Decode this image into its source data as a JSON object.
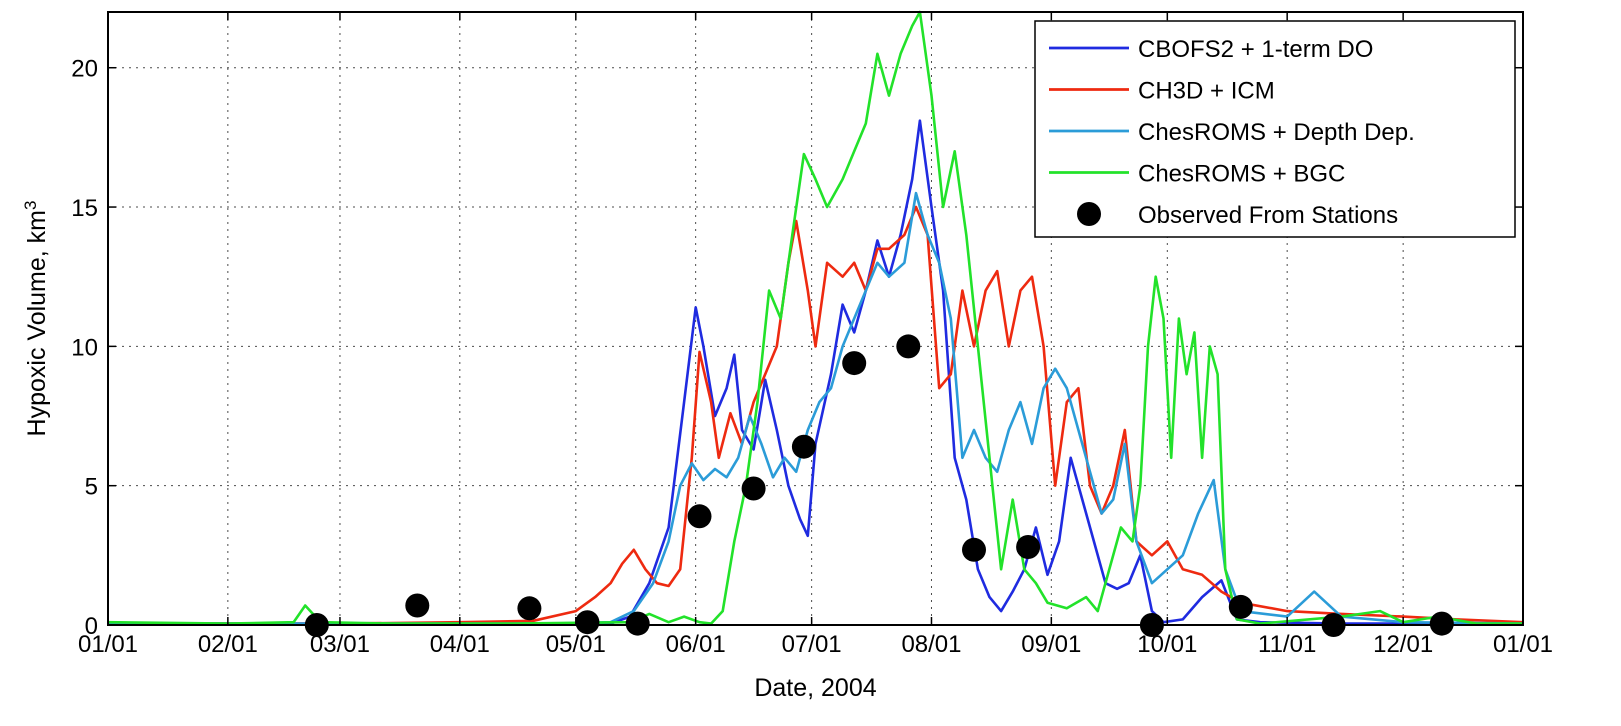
{
  "chart_data": {
    "type": "line",
    "xlabel": "Date, 2004",
    "ylabel": "Hypoxic Volume, km",
    "ylabel_superscript": "3",
    "x_tick_labels": [
      "01/01",
      "02/01",
      "03/01",
      "04/01",
      "05/01",
      "06/01",
      "07/01",
      "08/01",
      "09/01",
      "10/01",
      "11/01",
      "12/01",
      "01/01"
    ],
    "y_tick_labels": [
      "0",
      "5",
      "10",
      "15",
      "20"
    ],
    "y_ticks": [
      0,
      5,
      10,
      15,
      20
    ],
    "xlim": [
      "2004-01-01",
      "2005-01-01"
    ],
    "ylim": [
      0,
      22
    ],
    "grid": true,
    "legend_position": "top-right",
    "series": [
      {
        "name": "CBOFS2 + 1-term DO",
        "color": "#1f2be0",
        "points": [
          [
            "2004-01-01",
            0.05
          ],
          [
            "2004-02-01",
            0.05
          ],
          [
            "2004-03-01",
            0.05
          ],
          [
            "2004-04-01",
            0.05
          ],
          [
            "2004-04-25",
            0.05
          ],
          [
            "2004-05-10",
            0.05
          ],
          [
            "2004-05-15",
            0.3
          ],
          [
            "2004-05-20",
            1.5
          ],
          [
            "2004-05-25",
            3.5
          ],
          [
            "2004-05-29",
            8
          ],
          [
            "2004-06-01",
            11.4
          ],
          [
            "2004-06-03",
            10
          ],
          [
            "2004-06-06",
            7.5
          ],
          [
            "2004-06-09",
            8.5
          ],
          [
            "2004-06-11",
            9.7
          ],
          [
            "2004-06-13",
            7
          ],
          [
            "2004-06-16",
            6.3
          ],
          [
            "2004-06-19",
            8.8
          ],
          [
            "2004-06-22",
            7
          ],
          [
            "2004-06-25",
            5
          ],
          [
            "2004-06-28",
            3.8
          ],
          [
            "2004-06-30",
            3.2
          ],
          [
            "2004-07-02",
            6.5
          ],
          [
            "2004-07-06",
            9
          ],
          [
            "2004-07-09",
            11.5
          ],
          [
            "2004-07-12",
            10.5
          ],
          [
            "2004-07-15",
            12
          ],
          [
            "2004-07-18",
            13.8
          ],
          [
            "2004-07-21",
            12.5
          ],
          [
            "2004-07-24",
            14
          ],
          [
            "2004-07-27",
            16
          ],
          [
            "2004-07-29",
            18.1
          ],
          [
            "2004-08-01",
            15
          ],
          [
            "2004-08-04",
            12
          ],
          [
            "2004-08-07",
            6
          ],
          [
            "2004-08-10",
            4.5
          ],
          [
            "2004-08-13",
            2
          ],
          [
            "2004-08-16",
            1
          ],
          [
            "2004-08-19",
            0.5
          ],
          [
            "2004-08-22",
            1.2
          ],
          [
            "2004-08-25",
            2
          ],
          [
            "2004-08-28",
            3.5
          ],
          [
            "2004-08-31",
            1.8
          ],
          [
            "2004-09-03",
            3
          ],
          [
            "2004-09-06",
            6
          ],
          [
            "2004-09-09",
            4.5
          ],
          [
            "2004-09-12",
            3
          ],
          [
            "2004-09-15",
            1.5
          ],
          [
            "2004-09-18",
            1.3
          ],
          [
            "2004-09-21",
            1.5
          ],
          [
            "2004-09-24",
            2.5
          ],
          [
            "2004-09-27",
            0.5
          ],
          [
            "2004-09-30",
            0.1
          ],
          [
            "2004-10-05",
            0.2
          ],
          [
            "2004-10-10",
            1
          ],
          [
            "2004-10-15",
            1.6
          ],
          [
            "2004-10-19",
            0.2
          ],
          [
            "2004-10-25",
            0.1
          ],
          [
            "2004-11-15",
            0.05
          ],
          [
            "2004-12-15",
            0.05
          ],
          [
            "2005-01-01",
            0.05
          ]
        ]
      },
      {
        "name": "CH3D + ICM",
        "color": "#ee2a10",
        "points": [
          [
            "2004-01-01",
            0.05
          ],
          [
            "2004-02-01",
            0.05
          ],
          [
            "2004-03-01",
            0.05
          ],
          [
            "2004-04-01",
            0.1
          ],
          [
            "2004-04-20",
            0.15
          ],
          [
            "2004-05-01",
            0.5
          ],
          [
            "2004-05-06",
            1
          ],
          [
            "2004-05-10",
            1.5
          ],
          [
            "2004-05-13",
            2.2
          ],
          [
            "2004-05-16",
            2.7
          ],
          [
            "2004-05-19",
            2
          ],
          [
            "2004-05-22",
            1.5
          ],
          [
            "2004-05-25",
            1.4
          ],
          [
            "2004-05-28",
            2
          ],
          [
            "2004-05-31",
            6
          ],
          [
            "2004-06-02",
            9.8
          ],
          [
            "2004-06-05",
            8
          ],
          [
            "2004-06-07",
            6
          ],
          [
            "2004-06-10",
            7.6
          ],
          [
            "2004-06-13",
            6.5
          ],
          [
            "2004-06-16",
            8
          ],
          [
            "2004-06-19",
            9
          ],
          [
            "2004-06-22",
            10
          ],
          [
            "2004-06-25",
            13
          ],
          [
            "2004-06-27",
            14.5
          ],
          [
            "2004-06-30",
            12
          ],
          [
            "2004-07-02",
            10
          ],
          [
            "2004-07-05",
            13
          ],
          [
            "2004-07-09",
            12.5
          ],
          [
            "2004-07-12",
            13
          ],
          [
            "2004-07-15",
            12
          ],
          [
            "2004-07-18",
            13.5
          ],
          [
            "2004-07-21",
            13.5
          ],
          [
            "2004-07-25",
            14
          ],
          [
            "2004-07-28",
            15
          ],
          [
            "2004-07-31",
            14
          ],
          [
            "2004-08-03",
            8.5
          ],
          [
            "2004-08-06",
            9
          ],
          [
            "2004-08-09",
            12
          ],
          [
            "2004-08-12",
            10
          ],
          [
            "2004-08-15",
            12
          ],
          [
            "2004-08-18",
            12.7
          ],
          [
            "2004-08-21",
            10
          ],
          [
            "2004-08-24",
            12
          ],
          [
            "2004-08-27",
            12.5
          ],
          [
            "2004-08-30",
            10
          ],
          [
            "2004-09-02",
            5
          ],
          [
            "2004-09-05",
            8
          ],
          [
            "2004-09-08",
            8.5
          ],
          [
            "2004-09-11",
            5
          ],
          [
            "2004-09-14",
            4
          ],
          [
            "2004-09-17",
            5
          ],
          [
            "2004-09-20",
            7
          ],
          [
            "2004-09-23",
            3
          ],
          [
            "2004-09-27",
            2.5
          ],
          [
            "2004-10-01",
            3
          ],
          [
            "2004-10-05",
            2
          ],
          [
            "2004-10-10",
            1.8
          ],
          [
            "2004-10-15",
            1.2
          ],
          [
            "2004-10-20",
            0.8
          ],
          [
            "2004-11-01",
            0.5
          ],
          [
            "2004-11-15",
            0.4
          ],
          [
            "2004-12-01",
            0.3
          ],
          [
            "2004-12-15",
            0.2
          ],
          [
            "2005-01-01",
            0.1
          ]
        ]
      },
      {
        "name": "ChesROMS + Depth Dep.",
        "color": "#2b9cd8",
        "points": [
          [
            "2004-01-01",
            0.05
          ],
          [
            "2004-02-01",
            0.05
          ],
          [
            "2004-03-01",
            0.05
          ],
          [
            "2004-04-01",
            0.05
          ],
          [
            "2004-04-25",
            0.05
          ],
          [
            "2004-05-10",
            0.1
          ],
          [
            "2004-05-16",
            0.5
          ],
          [
            "2004-05-21",
            1.5
          ],
          [
            "2004-05-25",
            3
          ],
          [
            "2004-05-28",
            5
          ],
          [
            "2004-05-31",
            5.8
          ],
          [
            "2004-06-03",
            5.2
          ],
          [
            "2004-06-06",
            5.6
          ],
          [
            "2004-06-09",
            5.3
          ],
          [
            "2004-06-12",
            6
          ],
          [
            "2004-06-15",
            7.5
          ],
          [
            "2004-06-18",
            6.5
          ],
          [
            "2004-06-21",
            5.3
          ],
          [
            "2004-06-24",
            6
          ],
          [
            "2004-06-27",
            5.5
          ],
          [
            "2004-06-30",
            7
          ],
          [
            "2004-07-03",
            8
          ],
          [
            "2004-07-06",
            8.5
          ],
          [
            "2004-07-09",
            10
          ],
          [
            "2004-07-12",
            11
          ],
          [
            "2004-07-15",
            12
          ],
          [
            "2004-07-18",
            13
          ],
          [
            "2004-07-21",
            12.5
          ],
          [
            "2004-07-25",
            13
          ],
          [
            "2004-07-28",
            15.5
          ],
          [
            "2004-07-31",
            14
          ],
          [
            "2004-08-03",
            13
          ],
          [
            "2004-08-06",
            11
          ],
          [
            "2004-08-09",
            6
          ],
          [
            "2004-08-12",
            7
          ],
          [
            "2004-08-15",
            6
          ],
          [
            "2004-08-18",
            5.5
          ],
          [
            "2004-08-21",
            7
          ],
          [
            "2004-08-24",
            8
          ],
          [
            "2004-08-27",
            6.5
          ],
          [
            "2004-08-30",
            8.5
          ],
          [
            "2004-09-02",
            9.2
          ],
          [
            "2004-09-05",
            8.5
          ],
          [
            "2004-09-08",
            7
          ],
          [
            "2004-09-11",
            5.5
          ],
          [
            "2004-09-14",
            4
          ],
          [
            "2004-09-17",
            4.5
          ],
          [
            "2004-09-20",
            6.5
          ],
          [
            "2004-09-23",
            3
          ],
          [
            "2004-09-27",
            1.5
          ],
          [
            "2004-10-01",
            2
          ],
          [
            "2004-10-05",
            2.5
          ],
          [
            "2004-10-09",
            4
          ],
          [
            "2004-10-13",
            5.2
          ],
          [
            "2004-10-16",
            2
          ],
          [
            "2004-10-20",
            0.5
          ],
          [
            "2004-11-01",
            0.3
          ],
          [
            "2004-11-08",
            1.2
          ],
          [
            "2004-11-15",
            0.3
          ],
          [
            "2004-12-01",
            0.1
          ],
          [
            "2005-01-01",
            0.05
          ]
        ]
      },
      {
        "name": "ChesROMS + BGC",
        "color": "#22e22a",
        "points": [
          [
            "2004-01-01",
            0.1
          ],
          [
            "2004-02-01",
            0.05
          ],
          [
            "2004-02-18",
            0.1
          ],
          [
            "2004-02-21",
            0.7
          ],
          [
            "2004-02-25",
            0.1
          ],
          [
            "2004-03-15",
            0.05
          ],
          [
            "2004-04-15",
            0.05
          ],
          [
            "2004-05-15",
            0.1
          ],
          [
            "2004-05-20",
            0.4
          ],
          [
            "2004-05-25",
            0.1
          ],
          [
            "2004-05-29",
            0.3
          ],
          [
            "2004-06-02",
            0.1
          ],
          [
            "2004-06-05",
            0.05
          ],
          [
            "2004-06-08",
            0.5
          ],
          [
            "2004-06-11",
            3
          ],
          [
            "2004-06-14",
            5
          ],
          [
            "2004-06-17",
            8
          ],
          [
            "2004-06-20",
            12
          ],
          [
            "2004-06-23",
            11
          ],
          [
            "2004-06-26",
            14
          ],
          [
            "2004-06-29",
            16.9
          ],
          [
            "2004-07-02",
            16
          ],
          [
            "2004-07-05",
            15
          ],
          [
            "2004-07-09",
            16
          ],
          [
            "2004-07-12",
            17
          ],
          [
            "2004-07-15",
            18
          ],
          [
            "2004-07-18",
            20.5
          ],
          [
            "2004-07-21",
            19
          ],
          [
            "2004-07-24",
            20.5
          ],
          [
            "2004-07-27",
            21.5
          ],
          [
            "2004-07-29",
            22
          ],
          [
            "2004-08-01",
            19
          ],
          [
            "2004-08-04",
            15
          ],
          [
            "2004-08-07",
            17
          ],
          [
            "2004-08-10",
            14
          ],
          [
            "2004-08-13",
            10
          ],
          [
            "2004-08-16",
            6
          ],
          [
            "2004-08-19",
            2
          ],
          [
            "2004-08-22",
            4.5
          ],
          [
            "2004-08-25",
            2
          ],
          [
            "2004-08-28",
            1.5
          ],
          [
            "2004-08-31",
            0.8
          ],
          [
            "2004-09-05",
            0.6
          ],
          [
            "2004-09-10",
            1
          ],
          [
            "2004-09-13",
            0.5
          ],
          [
            "2004-09-16",
            2
          ],
          [
            "2004-09-19",
            3.5
          ],
          [
            "2004-09-22",
            3
          ],
          [
            "2004-09-24",
            5
          ],
          [
            "2004-09-26",
            10
          ],
          [
            "2004-09-28",
            12.5
          ],
          [
            "2004-09-30",
            11
          ],
          [
            "2004-10-02",
            6
          ],
          [
            "2004-10-04",
            11
          ],
          [
            "2004-10-06",
            9
          ],
          [
            "2004-10-08",
            10.5
          ],
          [
            "2004-10-10",
            6
          ],
          [
            "2004-10-12",
            10
          ],
          [
            "2004-10-14",
            9
          ],
          [
            "2004-10-16",
            2
          ],
          [
            "2004-10-19",
            0.2
          ],
          [
            "2004-10-25",
            0.05
          ],
          [
            "2004-11-15",
            0.3
          ],
          [
            "2004-11-25",
            0.5
          ],
          [
            "2004-12-01",
            0.1
          ],
          [
            "2004-12-10",
            0.3
          ],
          [
            "2004-12-20",
            0.05
          ],
          [
            "2005-01-01",
            0.05
          ]
        ]
      }
    ],
    "observed": {
      "name": "Observed From Stations",
      "color": "#000000",
      "points": [
        [
          "2004-02-24",
          0
        ],
        [
          "2004-03-21",
          0.7
        ],
        [
          "2004-04-19",
          0.6
        ],
        [
          "2004-05-04",
          0.1
        ],
        [
          "2004-05-17",
          0.05
        ],
        [
          "2004-06-02",
          3.9
        ],
        [
          "2004-06-16",
          4.9
        ],
        [
          "2004-06-29",
          6.4
        ],
        [
          "2004-07-12",
          9.4
        ],
        [
          "2004-07-26",
          10
        ],
        [
          "2004-08-12",
          2.7
        ],
        [
          "2004-08-26",
          2.8
        ],
        [
          "2004-09-27",
          0
        ],
        [
          "2004-10-20",
          0.65
        ],
        [
          "2004-11-13",
          0
        ],
        [
          "2004-12-11",
          0.05
        ]
      ]
    }
  }
}
